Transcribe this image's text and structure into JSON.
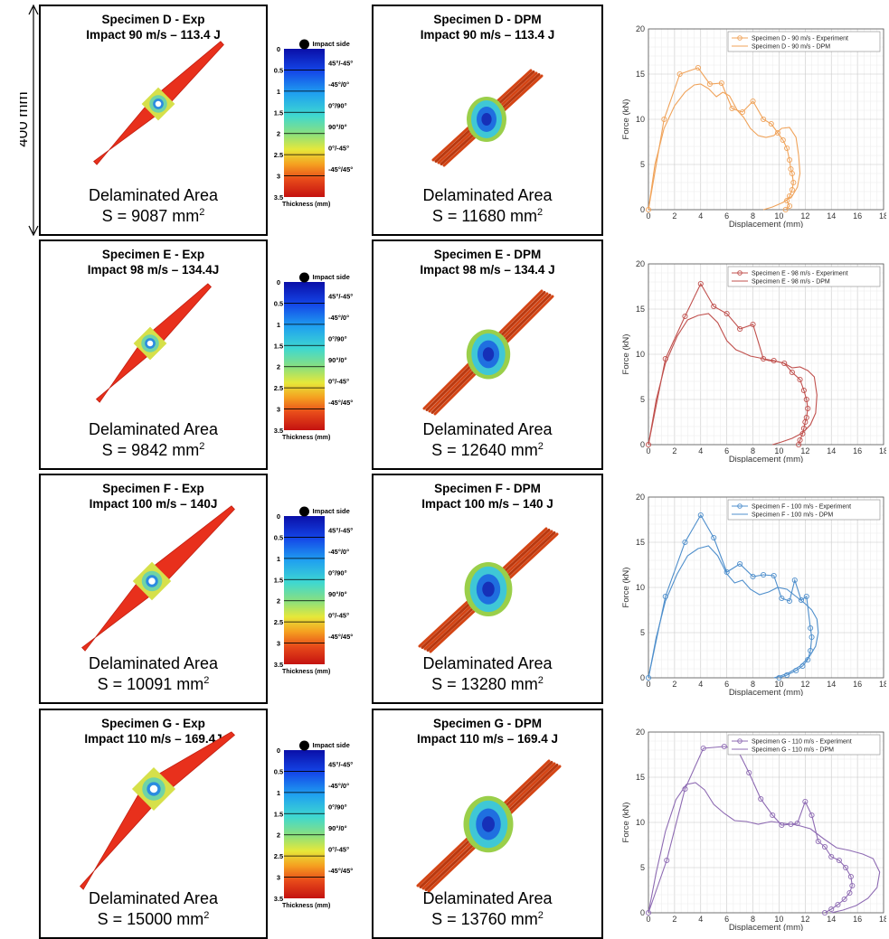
{
  "scale_bar_label": "400 mm",
  "colorbar": {
    "impact_label": "Impact side",
    "thickness_label": "Thickness (mm)",
    "ticks": [
      "0",
      "0.5",
      "1",
      "1.5",
      "2",
      "2.5",
      "3",
      "3.5"
    ],
    "layers": [
      "45°/-45°",
      "-45°/0°",
      "0°/90°",
      "90°/0°",
      "0°/-45°",
      "-45°/45°"
    ]
  },
  "delaminated_label": "Delaminated Area",
  "rows": [
    {
      "exp_title": [
        "Specimen D - Exp",
        "Impact 90 m/s – 113.4 J"
      ],
      "dpm_title": [
        "Specimen D - DPM",
        "Impact 90 m/s – 113.4 J"
      ],
      "exp_area": "S = 9087 mm",
      "dpm_area": "S = 11680 mm",
      "sup": "2"
    },
    {
      "exp_title": [
        "Specimen E - Exp",
        "Impact 98 m/s – 134.4J"
      ],
      "dpm_title": [
        "Specimen E - DPM",
        "Impact 98 m/s – 134.4 J"
      ],
      "exp_area": "S = 9842 mm",
      "dpm_area": "S = 12640 mm",
      "sup": "2"
    },
    {
      "exp_title": [
        "Specimen F - Exp",
        "Impact 100 m/s – 140J"
      ],
      "dpm_title": [
        "Specimen F - DPM",
        "Impact 100 m/s – 140 J"
      ],
      "exp_area": "S = 10091 mm",
      "dpm_area": "S = 13280 mm",
      "sup": "2"
    },
    {
      "exp_title": [
        "Specimen G - Exp",
        "Impact 110 m/s – 169.4J"
      ],
      "dpm_title": [
        "Specimen G - DPM",
        "Impact 110 m/s – 169.4 J"
      ],
      "exp_area": "S = 15000 mm",
      "dpm_area": "S = 13760 mm",
      "sup": "2"
    }
  ],
  "chart_data": [
    {
      "type": "line",
      "xlabel": "Displacement (mm)",
      "ylabel": "Force (kN)",
      "xlim": [
        0,
        18
      ],
      "ylim": [
        0,
        20
      ],
      "grid": true,
      "legend": "top-right",
      "color": "#f0a35a",
      "xticks": [
        "0",
        "2",
        "4",
        "6",
        "8",
        "10",
        "12",
        "14",
        "16",
        "18"
      ],
      "yticks": [
        "0",
        "5",
        "10",
        "15",
        "20"
      ],
      "series": [
        {
          "name": "Specimen D - 90 m/s - Experiment",
          "marker": "circle",
          "x": [
            0,
            1.2,
            2.4,
            3.8,
            4.7,
            5.6,
            6.4,
            7.2,
            8,
            8.8,
            9.4,
            9.9,
            10.3,
            10.6,
            10.8,
            10.9,
            11,
            11.1,
            11.0,
            10.8,
            10.6,
            10.8,
            10.5
          ],
          "y": [
            0,
            10,
            15,
            15.7,
            13.9,
            14,
            11.2,
            10.8,
            12,
            10,
            9.5,
            8.5,
            7.7,
            6.8,
            5.5,
            4.5,
            4,
            3,
            2.2,
            1.5,
            1.0,
            0.4,
            0
          ]
        },
        {
          "name": "Specimen D - 90 m/s - DPM",
          "marker": "none",
          "x": [
            0,
            0.5,
            1.2,
            2,
            2.8,
            3.5,
            4,
            4.6,
            5.2,
            5.7,
            6.2,
            6.8,
            7.3,
            7.8,
            8.4,
            9,
            9.6,
            10.2,
            10.8,
            11.3,
            11.5,
            11.6,
            11.4,
            11,
            10.3,
            9.5,
            8.8
          ],
          "y": [
            0,
            5,
            9,
            11.5,
            13,
            13.8,
            13.9,
            13.4,
            12.5,
            13,
            12.6,
            11,
            10.2,
            9,
            8.2,
            8,
            8.2,
            9,
            9.1,
            8,
            6,
            4,
            2.5,
            1.5,
            0.8,
            0.3,
            0
          ]
        }
      ]
    },
    {
      "type": "line",
      "xlabel": "Displacement (mm)",
      "ylabel": "Force (kN)",
      "xlim": [
        0,
        18
      ],
      "ylim": [
        0,
        20
      ],
      "grid": true,
      "legend": "top-right",
      "color": "#c0504d",
      "xticks": [
        "0",
        "2",
        "4",
        "6",
        "8",
        "10",
        "12",
        "14",
        "16",
        "18"
      ],
      "yticks": [
        "0",
        "5",
        "10",
        "15",
        "20"
      ],
      "series": [
        {
          "name": "Specimen E - 98 m/s - Experiment",
          "marker": "circle",
          "x": [
            0,
            1.3,
            2.8,
            4,
            5,
            6,
            7,
            8,
            8.8,
            9.6,
            10.4,
            11,
            11.6,
            11.9,
            12.1,
            12.2,
            12.1,
            12,
            11.9,
            11.8,
            11.6,
            11.5
          ],
          "y": [
            0,
            9.5,
            14.2,
            17.8,
            15.3,
            14.5,
            12.8,
            13.3,
            9.5,
            9.3,
            9.0,
            8.0,
            7.2,
            6,
            5,
            4,
            3,
            2.5,
            1.8,
            1.2,
            0.5,
            0
          ]
        },
        {
          "name": "Specimen E - 98 m/s - DPM",
          "marker": "none",
          "x": [
            0,
            0.6,
            1.3,
            2.2,
            3,
            3.8,
            4.6,
            5.3,
            6,
            6.7,
            7.2,
            7.8,
            8.5,
            9.2,
            9.8,
            10.4,
            11,
            11.6,
            12.2,
            12.7,
            12.9,
            12.8,
            12.4,
            11.8,
            11,
            10.2,
            9.5
          ],
          "y": [
            0,
            5,
            9,
            12,
            13.8,
            14.3,
            14.5,
            13.5,
            11.5,
            10.5,
            10.2,
            9.8,
            9.6,
            9.3,
            9.2,
            9.0,
            8.5,
            8.6,
            8.2,
            7.5,
            5.5,
            3.5,
            2.2,
            1.3,
            0.7,
            0.3,
            0
          ]
        }
      ]
    },
    {
      "type": "line",
      "xlabel": "Displacement (mm)",
      "ylabel": "Force (kN)",
      "xlim": [
        0,
        18
      ],
      "ylim": [
        0,
        20
      ],
      "grid": true,
      "legend": "top-right",
      "color": "#4f8fcc",
      "xticks": [
        "0",
        "2",
        "4",
        "6",
        "8",
        "10",
        "12",
        "14",
        "16",
        "18"
      ],
      "yticks": [
        "0",
        "5",
        "10",
        "15",
        "20"
      ],
      "series": [
        {
          "name": "Specimen F - 100 m/s - Experiment",
          "marker": "circle",
          "x": [
            0,
            1.3,
            2.8,
            4,
            5,
            6,
            7,
            8,
            8.8,
            9.6,
            10.2,
            10.8,
            11.2,
            11.7,
            12.1,
            12.4,
            12.5,
            12.4,
            12.2,
            11.8,
            11.3,
            10.6,
            10
          ],
          "y": [
            0,
            9,
            15,
            18,
            15.5,
            11.7,
            12.6,
            11.2,
            11.4,
            11.3,
            8.8,
            8.5,
            10.8,
            8.6,
            9.0,
            5.5,
            4.5,
            3.0,
            2.0,
            1.3,
            0.8,
            0.3,
            0
          ]
        },
        {
          "name": "Specimen F - 100 m/s - DPM",
          "marker": "none",
          "x": [
            0,
            0.6,
            1.3,
            2.2,
            3,
            3.8,
            4.6,
            5.3,
            6,
            6.6,
            7.2,
            7.8,
            8.5,
            9.2,
            9.9,
            10.6,
            11.3,
            12,
            12.5,
            12.9,
            13,
            12.8,
            12.3,
            11.6,
            10.8,
            10.1,
            9.6
          ],
          "y": [
            0,
            4.5,
            8.5,
            11.5,
            13.5,
            14.3,
            14.6,
            13.5,
            11.5,
            10.5,
            10.8,
            9.8,
            9.2,
            9.5,
            10,
            9.8,
            9.0,
            8.2,
            7.5,
            6.5,
            5,
            3.5,
            2.3,
            1.3,
            0.6,
            0.2,
            0
          ]
        }
      ]
    },
    {
      "type": "line",
      "xlabel": "Displacement (mm)",
      "ylabel": "Force (kN)",
      "xlim": [
        0,
        18
      ],
      "ylim": [
        0,
        20
      ],
      "grid": true,
      "legend": "top-right",
      "color": "#8e6bb3",
      "xticks": [
        "0",
        "2",
        "4",
        "6",
        "8",
        "10",
        "12",
        "14",
        "16",
        "18"
      ],
      "yticks": [
        "0",
        "5",
        "10",
        "15",
        "20"
      ],
      "series": [
        {
          "name": "Specimen G - 110 m/s - Experiment",
          "marker": "circle",
          "x": [
            0,
            1.4,
            2.8,
            4.2,
            5.8,
            6.8,
            7.7,
            8.6,
            9.5,
            10.2,
            10.9,
            11.4,
            12.0,
            12.5,
            13.0,
            13.5,
            14.0,
            14.6,
            15.1,
            15.5,
            15.6,
            15.4,
            15.0,
            14.5,
            14.0,
            13.5
          ],
          "y": [
            0,
            5.8,
            13.7,
            18.2,
            18.4,
            18.1,
            15.5,
            12.6,
            10.8,
            9.7,
            9.8,
            9.9,
            12.3,
            10.8,
            7.9,
            7.3,
            6.2,
            5.8,
            5.0,
            4.0,
            3.0,
            2.2,
            1.5,
            0.9,
            0.4,
            0
          ]
        },
        {
          "name": "Specimen G - 110 m/s - DPM",
          "marker": "none",
          "x": [
            0,
            0.6,
            1.3,
            2.1,
            2.9,
            3.6,
            4.3,
            5,
            5.8,
            6.6,
            7.5,
            8.4,
            9.4,
            10.4,
            11.4,
            12.4,
            13.4,
            14.4,
            15.4,
            16.4,
            17.2,
            17.7,
            17.5,
            16.8,
            15.9,
            14.9,
            14.0
          ],
          "y": [
            0,
            4.5,
            9,
            12.5,
            14.2,
            14.4,
            13.6,
            12,
            11,
            10.2,
            10.1,
            9.8,
            10.1,
            9.9,
            9.7,
            9.3,
            8.2,
            7.2,
            6.9,
            6.5,
            6,
            4.5,
            2.8,
            1.6,
            0.8,
            0.3,
            0
          ]
        }
      ]
    }
  ]
}
